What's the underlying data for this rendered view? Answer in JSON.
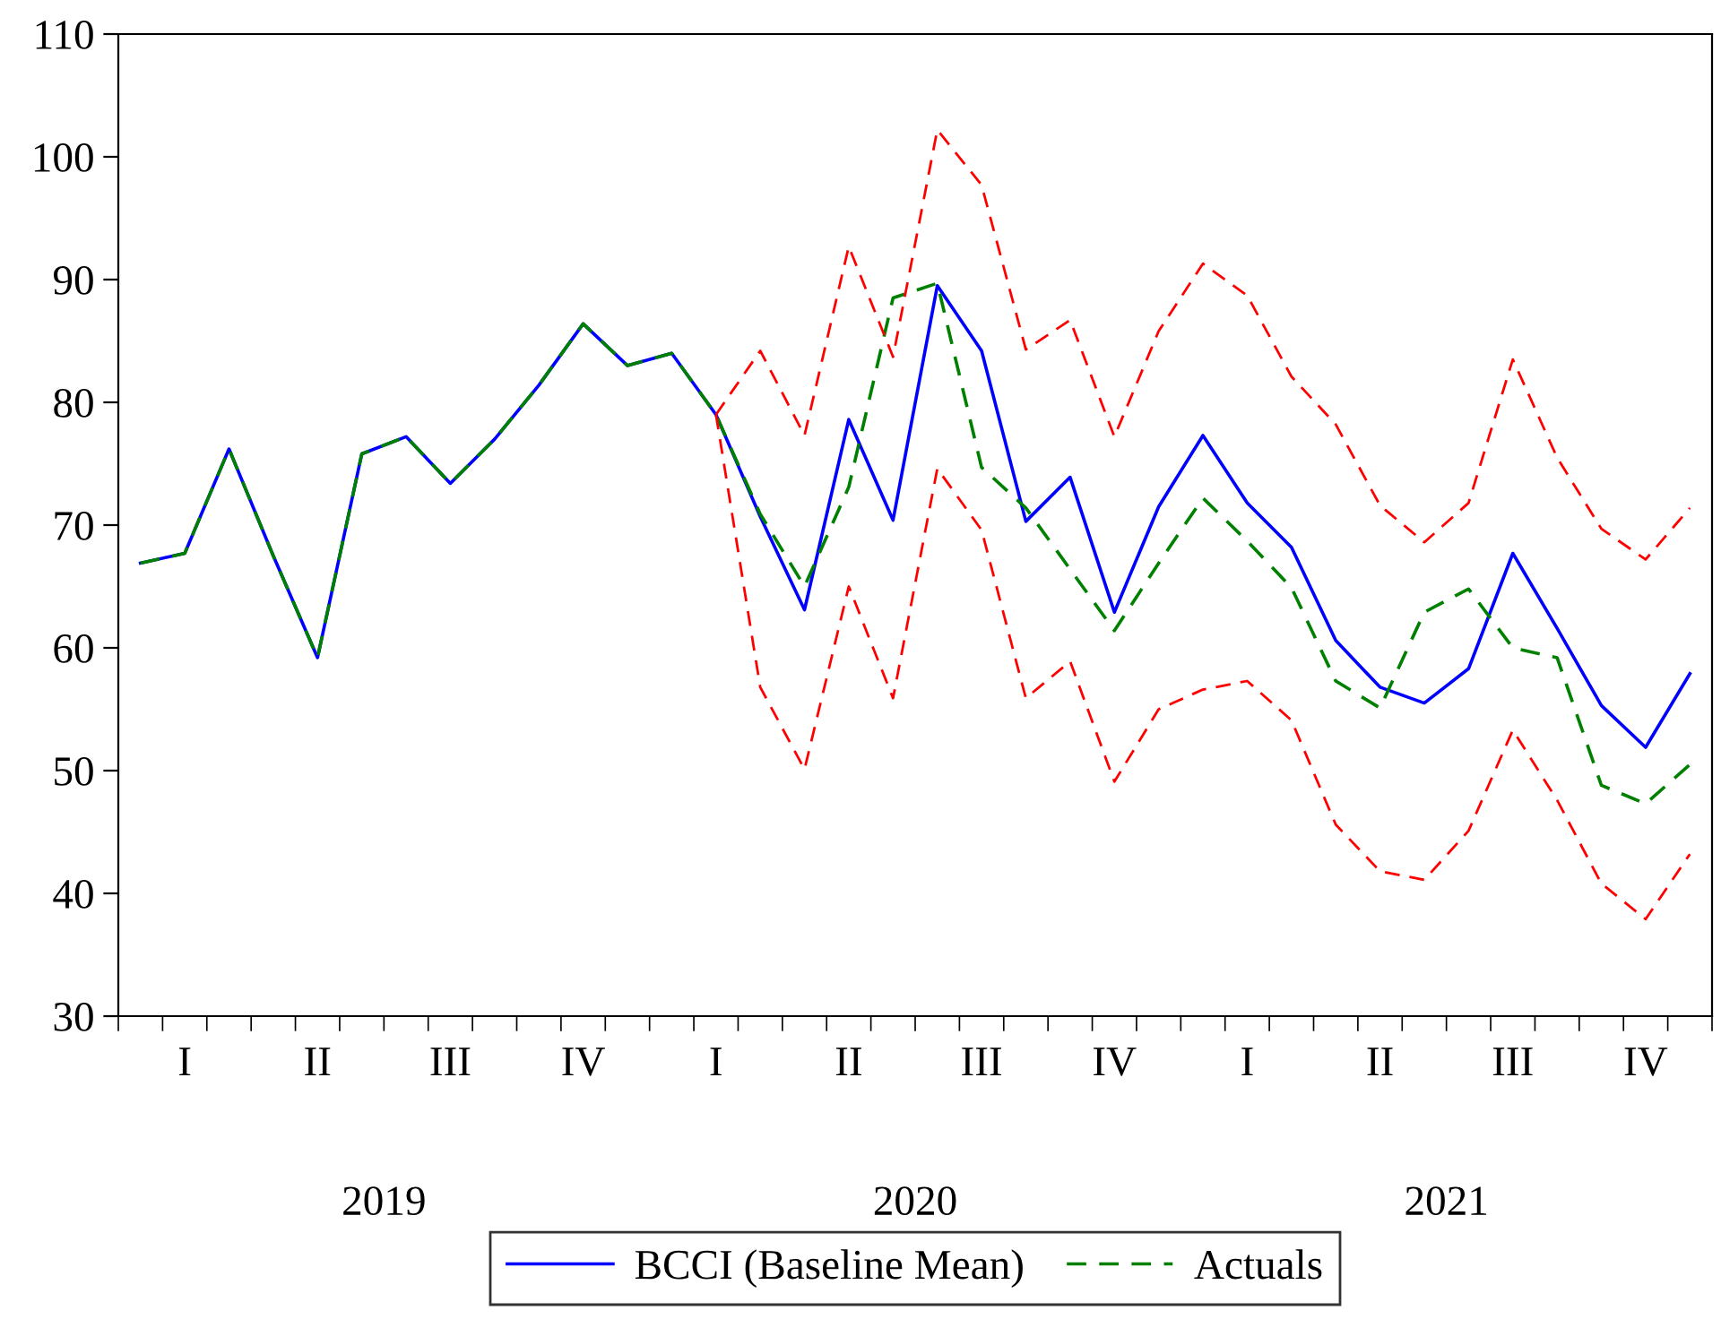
{
  "chart_data": {
    "type": "line",
    "categories": [
      null,
      "I",
      null,
      null,
      "II",
      null,
      null,
      "III",
      null,
      null,
      "IV",
      null,
      null,
      "I",
      null,
      null,
      "II",
      null,
      null,
      "III",
      null,
      null,
      "IV",
      null,
      null,
      "I",
      null,
      null,
      "II",
      null,
      null,
      "III",
      null,
      null,
      "IV",
      null
    ],
    "annotations": [
      "2019",
      "2020",
      "2021"
    ],
    "series": [
      {
        "name": "BCCI (Baseline Mean)",
        "color": "#0000ff",
        "line_style": "solid",
        "values": [
          66.9,
          67.7,
          76.2,
          67.5,
          59.2,
          75.8,
          77.2,
          73.4,
          77.0,
          81.4,
          86.4,
          83.0,
          84.0,
          79.0,
          70.7,
          63.1,
          78.6,
          70.4,
          89.5,
          84.2,
          70.3,
          73.9,
          62.9,
          71.5,
          77.3,
          71.8,
          68.2,
          60.6,
          56.8,
          55.5,
          58.3,
          67.7,
          61.6,
          55.3,
          51.9,
          57.9
        ]
      },
      {
        "name": "Actuals",
        "color": "#008000",
        "line_style": "dashed",
        "values": [
          66.9,
          67.7,
          76.2,
          67.5,
          59.2,
          75.8,
          77.2,
          73.4,
          77.0,
          81.4,
          86.4,
          83.0,
          84.0,
          79.0,
          70.9,
          65.0,
          73.1,
          88.5,
          89.7,
          74.7,
          71.4,
          66.4,
          61.4,
          66.9,
          72.2,
          68.7,
          64.9,
          57.3,
          55.1,
          62.9,
          64.8,
          60.0,
          59.2,
          48.8,
          47.3,
          50.5
        ]
      },
      {
        "color": "#ff0000",
        "line_style": "dashed",
        "values": [
          null,
          null,
          null,
          null,
          null,
          null,
          null,
          null,
          null,
          null,
          null,
          null,
          null,
          79.0,
          84.2,
          77.3,
          92.7,
          83.7,
          102.2,
          97.7,
          84.3,
          86.7,
          77.2,
          85.8,
          91.3,
          88.7,
          82.1,
          78.2,
          71.6,
          68.6,
          71.8,
          83.5,
          75.5,
          69.7,
          67.2,
          71.4
        ]
      },
      {
        "color": "#ff0000",
        "line_style": "dashed",
        "values": [
          null,
          null,
          null,
          null,
          null,
          null,
          null,
          null,
          null,
          null,
          null,
          null,
          null,
          79.0,
          56.8,
          50.1,
          65.0,
          55.9,
          74.6,
          69.6,
          55.9,
          58.9,
          49.1,
          55.0,
          56.6,
          57.3,
          54.1,
          45.6,
          41.8,
          41.1,
          45.1,
          53.3,
          47.6,
          40.8,
          37.9,
          43.2
        ]
      }
    ],
    "ylim": [
      30,
      110
    ],
    "yticks": [
      30,
      40,
      50,
      60,
      70,
      80,
      90,
      100,
      110
    ],
    "grid": false,
    "legend": "bottom",
    "marker": "none"
  }
}
